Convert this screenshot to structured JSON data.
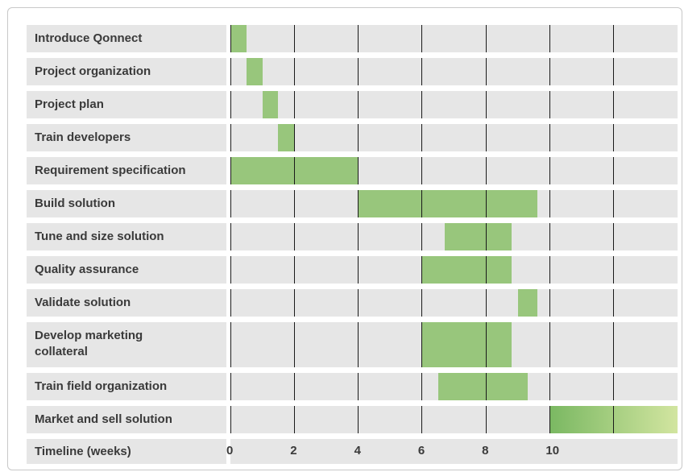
{
  "chart_data": {
    "type": "gantt",
    "x_label": "Timeline (weeks)",
    "xlim": [
      0,
      14
    ],
    "xticks": [
      0,
      2,
      4,
      6,
      8,
      10
    ],
    "grid_lines": [
      0,
      2,
      4,
      6,
      8,
      10,
      12
    ],
    "color": "#98c67c",
    "gradient": [
      "#7ab862",
      "#d2e5a0"
    ],
    "tasks": [
      {
        "name": "Introduce Qonnect",
        "start": 0,
        "end": 0.5
      },
      {
        "name": "Project organization",
        "start": 0.5,
        "end": 1
      },
      {
        "name": "Project plan",
        "start": 1,
        "end": 1.5
      },
      {
        "name": "Train developers",
        "start": 1.5,
        "end": 2
      },
      {
        "name": "Requirement specification",
        "start": 0,
        "end": 4
      },
      {
        "name": "Build solution",
        "start": 4,
        "end": 9.6
      },
      {
        "name": "Tune and size solution",
        "start": 6.7,
        "end": 8.8
      },
      {
        "name": "Quality assurance",
        "start": 6,
        "end": 8.8
      },
      {
        "name": "Validate solution",
        "start": 9,
        "end": 9.6
      },
      {
        "name": "Develop marketing\ncollateral",
        "start": 6,
        "end": 8.8
      },
      {
        "name": "Train field organization",
        "start": 6.5,
        "end": 9.3
      },
      {
        "name": "Market and sell solution",
        "start": 10,
        "end": 14,
        "gradient": true
      }
    ]
  }
}
